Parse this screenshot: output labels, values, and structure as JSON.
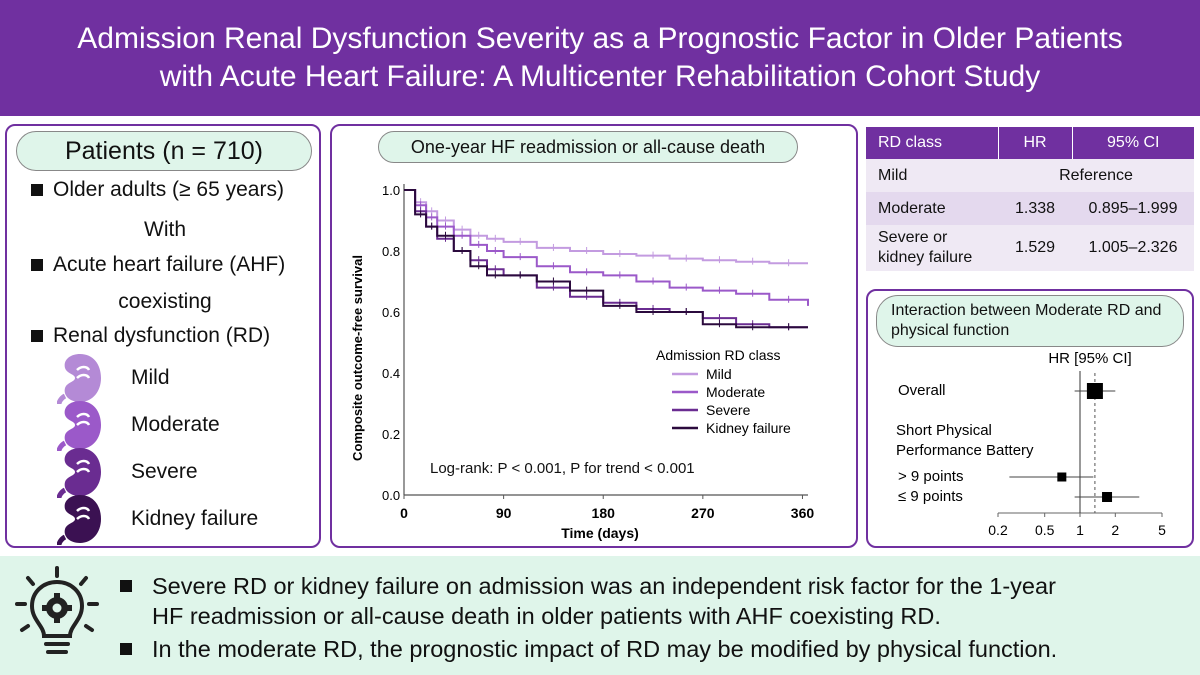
{
  "title": {
    "line1": "Admission Renal Dysfunction Severity as a Prognostic Factor in Older Patients",
    "line2": "with Acute Heart Failure: A Multicenter Rehabilitation Cohort Study"
  },
  "patients": {
    "heading": "Patients (n = 710)",
    "bullet1": "Older adults (≥ 65 years)",
    "with": "With",
    "bullet2": "Acute heart failure (AHF)",
    "coexisting": "coexisting",
    "bullet3": "Renal dysfunction (RD)",
    "classes": [
      {
        "label": "Mild",
        "color": "#b48ad6"
      },
      {
        "label": "Moderate",
        "color": "#9b59c9"
      },
      {
        "label": "Severe",
        "color": "#6a2c91"
      },
      {
        "label": "Kidney failure",
        "color": "#3b1152"
      }
    ]
  },
  "km_panel": {
    "heading": "One-year HF readmission or all-cause death",
    "logrank": "Log-rank:  P < 0.001, P for trend < 0.001"
  },
  "chart_data": {
    "type": "line",
    "title": "One-year HF readmission or all-cause death",
    "xlabel": "Time (days)",
    "ylabel": "Composite outcome-free survival",
    "xlim": [
      0,
      365
    ],
    "ylim": [
      0,
      1.0
    ],
    "xticks": [
      "0",
      "90",
      "180",
      "270",
      "360"
    ],
    "yticks": [
      "0.0",
      "0.2",
      "0.4",
      "0.6",
      "0.8",
      "1.0"
    ],
    "legend_title": "Admission RD class",
    "legend_position": "right",
    "series": [
      {
        "name": "Mild",
        "color": "#c39be0",
        "x": [
          0,
          10,
          20,
          30,
          45,
          60,
          75,
          90,
          120,
          150,
          180,
          210,
          240,
          270,
          300,
          330,
          365
        ],
        "y": [
          1.0,
          0.96,
          0.93,
          0.9,
          0.87,
          0.85,
          0.84,
          0.83,
          0.81,
          0.8,
          0.79,
          0.785,
          0.775,
          0.77,
          0.765,
          0.76,
          0.76
        ]
      },
      {
        "name": "Moderate",
        "color": "#9b59c9",
        "x": [
          0,
          10,
          20,
          30,
          45,
          60,
          75,
          90,
          120,
          150,
          180,
          210,
          240,
          270,
          300,
          330,
          365
        ],
        "y": [
          1.0,
          0.95,
          0.91,
          0.88,
          0.85,
          0.82,
          0.8,
          0.78,
          0.75,
          0.73,
          0.72,
          0.7,
          0.68,
          0.67,
          0.66,
          0.64,
          0.62
        ]
      },
      {
        "name": "Severe",
        "color": "#6a2c91",
        "x": [
          0,
          10,
          20,
          30,
          45,
          60,
          75,
          90,
          120,
          150,
          180,
          210,
          240,
          270,
          300,
          330,
          365
        ],
        "y": [
          1.0,
          0.93,
          0.88,
          0.84,
          0.8,
          0.77,
          0.74,
          0.72,
          0.68,
          0.65,
          0.63,
          0.61,
          0.6,
          0.58,
          0.56,
          0.55,
          0.55
        ]
      },
      {
        "name": "Kidney failure",
        "color": "#2b0a3d",
        "x": [
          0,
          10,
          20,
          30,
          45,
          60,
          75,
          90,
          120,
          150,
          180,
          210,
          240,
          270,
          300,
          330,
          365
        ],
        "y": [
          1.0,
          0.92,
          0.88,
          0.85,
          0.8,
          0.75,
          0.72,
          0.72,
          0.7,
          0.67,
          0.62,
          0.6,
          0.6,
          0.56,
          0.55,
          0.55,
          0.55
        ]
      }
    ]
  },
  "hr_table": {
    "headers": [
      "RD class",
      "HR",
      "95% CI"
    ],
    "rows": [
      {
        "label": "Mild",
        "hr": "Reference",
        "ci": ""
      },
      {
        "label": "Moderate",
        "hr": "1.338",
        "ci": "0.895–1.999"
      },
      {
        "label_l1": "Severe or",
        "label_l2": "kidney failure",
        "hr": "1.529",
        "ci": "1.005–2.326"
      }
    ]
  },
  "forest": {
    "heading": "Interaction between Moderate RD and physical function",
    "col_header": "HR [95% CI]",
    "overall": "Overall",
    "sppb_l1": "Short Physical",
    "sppb_l2": "Performance Battery",
    "gt9": "> 9 points",
    "le9": "≤ 9 points",
    "axis_ticks": [
      "0.2",
      "0.5",
      "1",
      "2",
      "5"
    ],
    "estimates": [
      {
        "name": "Overall",
        "hr": 1.34,
        "lo": 0.9,
        "hi": 2.0
      },
      {
        "name": "> 9 points",
        "hr": 0.7,
        "lo": 0.25,
        "hi": 1.3
      },
      {
        "name": "≤ 9 points",
        "hr": 1.7,
        "lo": 0.9,
        "hi": 3.2
      }
    ]
  },
  "conclusions": {
    "c1_l1": "Severe RD or kidney failure on admission was an independent risk factor for the 1-year",
    "c1_l2": "HF readmission or all-cause death in older patients with AHF coexisting RD.",
    "c2": "In the moderate RD, the prognostic impact of RD may be modified by physical function."
  }
}
